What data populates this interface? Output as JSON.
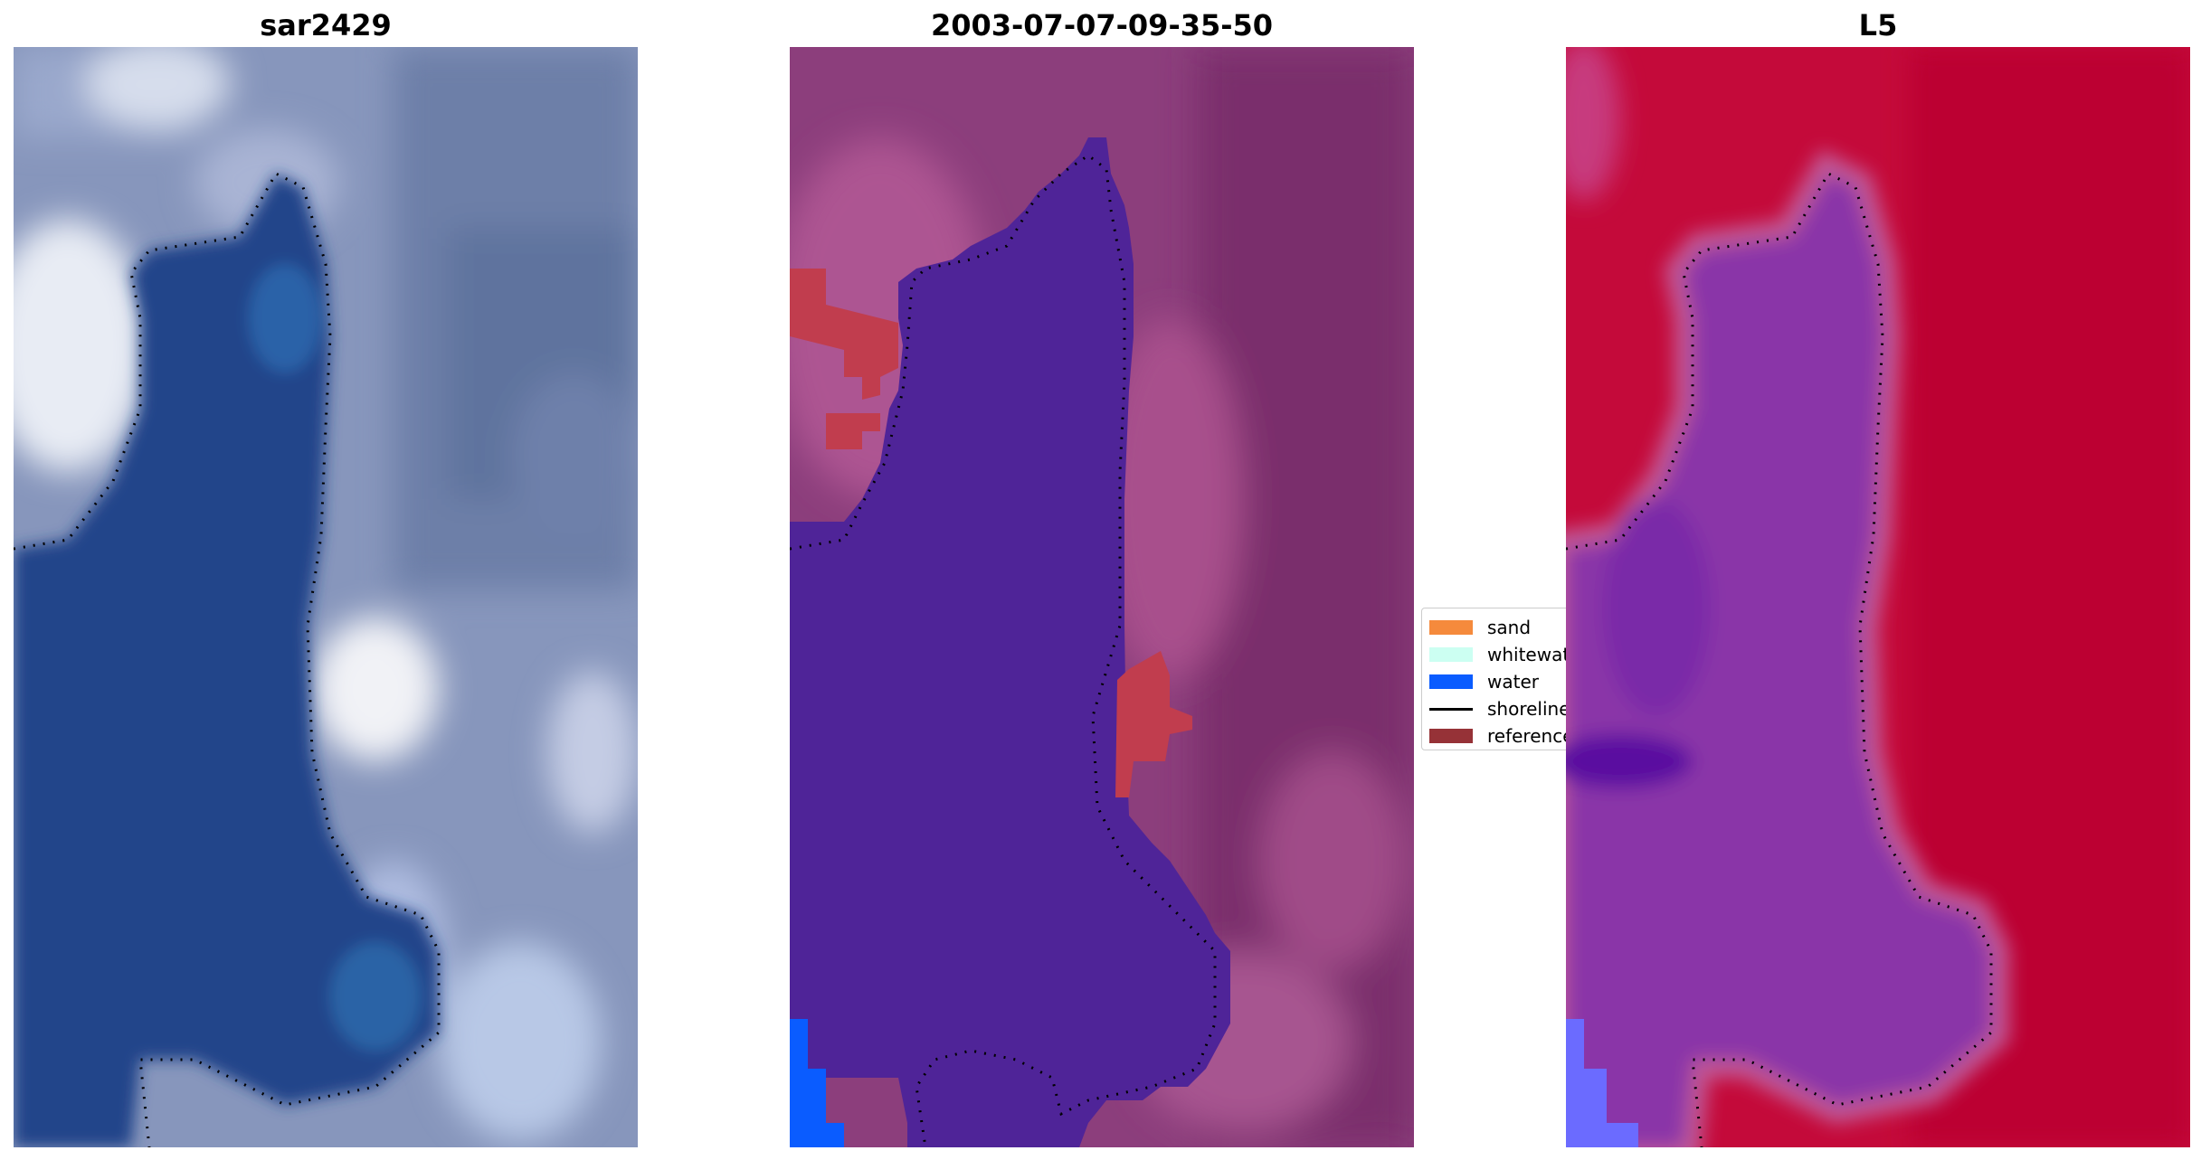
{
  "panels": [
    {
      "title": "sar2429"
    },
    {
      "title": "2003-07-07-09-35-50"
    },
    {
      "title": "L5"
    }
  ],
  "legend": {
    "items": [
      {
        "label": "sand",
        "color": "#f58a3c"
      },
      {
        "label": "whitewater",
        "color": "#ccfff2"
      },
      {
        "label": "water",
        "color": "#0a5cff"
      },
      {
        "label": "shoreline",
        "color": "#000000"
      },
      {
        "label": "reference",
        "color": "#963237"
      }
    ]
  },
  "colors": {
    "rgb_water": "#23458a",
    "rgb_land": "#8fa0c4",
    "class_water": "#4f2498",
    "class_land": "#9a4f88",
    "index_land": "#c40a3a",
    "index_water": "#8a35a8"
  }
}
